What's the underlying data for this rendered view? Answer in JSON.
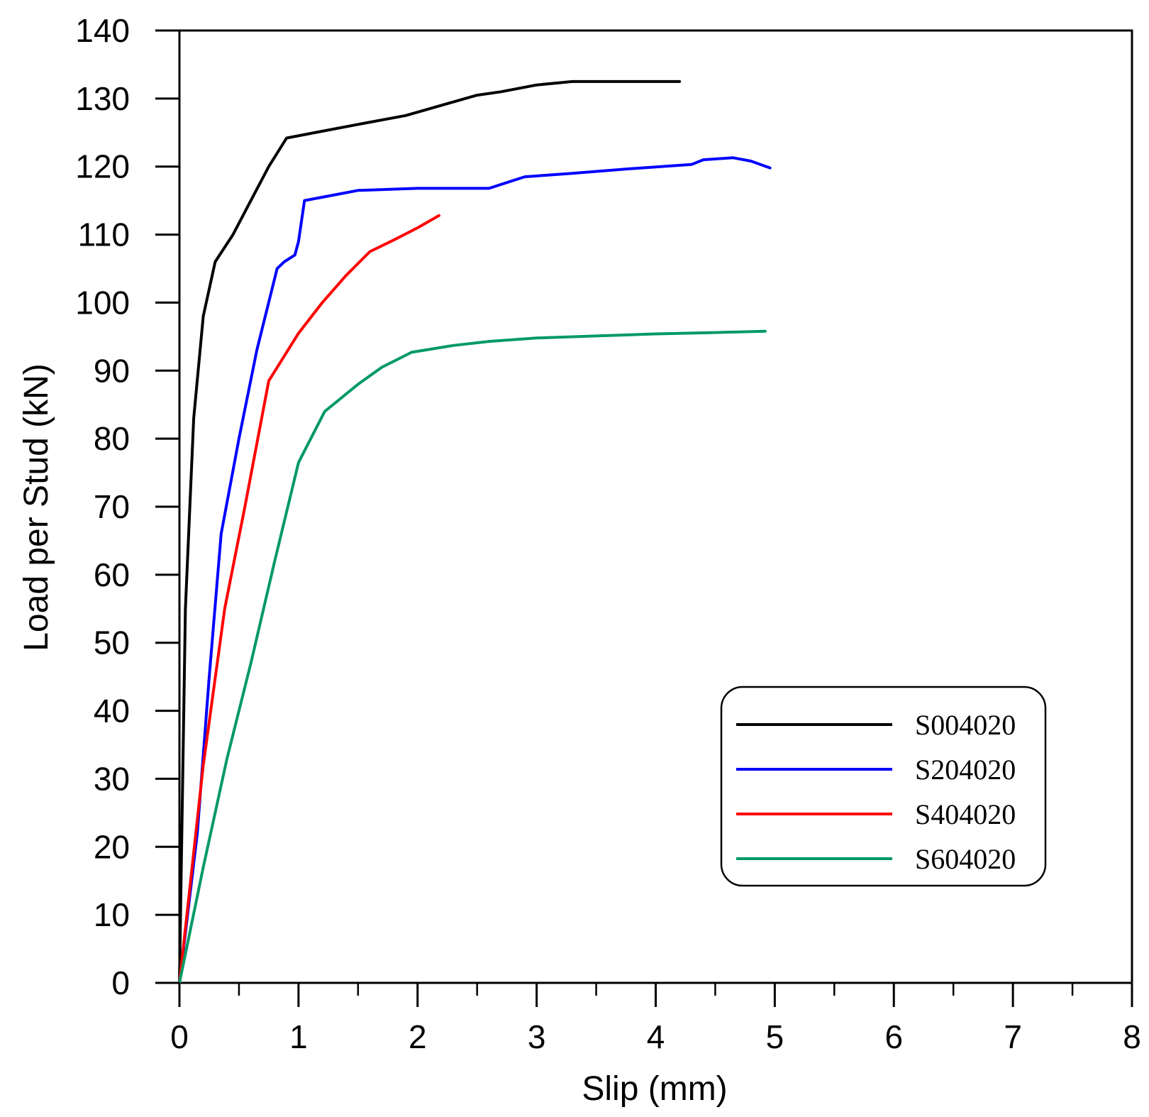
{
  "chart_data": {
    "type": "line",
    "title": "",
    "xlabel": "Slip (mm)",
    "ylabel": "Load per Stud (kN)",
    "xlim": [
      0,
      8
    ],
    "ylim": [
      0,
      140
    ],
    "xticks": [
      "0",
      "1",
      "2",
      "3",
      "4",
      "5",
      "6",
      "7",
      "8"
    ],
    "xtick_values": [
      0,
      1,
      2,
      3,
      4,
      5,
      6,
      7,
      8
    ],
    "yticks": [
      "0",
      "10",
      "20",
      "30",
      "40",
      "50",
      "60",
      "70",
      "80",
      "90",
      "100",
      "110",
      "120",
      "130",
      "140"
    ],
    "ytick_values": [
      0,
      10,
      20,
      30,
      40,
      50,
      60,
      70,
      80,
      90,
      100,
      110,
      120,
      130,
      140
    ],
    "grid": false,
    "legend_position": "bottom-right",
    "series": [
      {
        "name": "S004020",
        "color": "#000000",
        "x": [
          0,
          0.05,
          0.12,
          0.2,
          0.3,
          0.45,
          0.6,
          0.75,
          0.9,
          1.2,
          1.5,
          1.9,
          2.2,
          2.5,
          2.7,
          3.0,
          3.3,
          3.6,
          4.2
        ],
        "y": [
          0,
          55,
          83,
          98,
          106,
          110,
          115,
          120,
          124.2,
          125.2,
          126.2,
          127.5,
          129,
          130.5,
          131,
          132,
          132.5,
          132.5,
          132.5
        ]
      },
      {
        "name": "S204020",
        "color": "#0000ff",
        "x": [
          0,
          0.15,
          0.25,
          0.35,
          0.5,
          0.65,
          0.82,
          0.88,
          0.97,
          1.0,
          1.05,
          1.2,
          1.5,
          2.0,
          2.6,
          2.9,
          3.3,
          3.8,
          4.3,
          4.4,
          4.65,
          4.8,
          4.96
        ],
        "y": [
          0,
          22,
          45,
          66,
          80,
          93,
          105,
          106,
          107,
          109,
          115,
          115.5,
          116.5,
          116.8,
          116.8,
          118.5,
          119,
          119.7,
          120.3,
          121,
          121.3,
          120.8,
          119.8
        ]
      },
      {
        "name": "S404020",
        "color": "#ff0000",
        "x": [
          0,
          0.2,
          0.38,
          0.55,
          0.75,
          1.0,
          1.2,
          1.4,
          1.6,
          1.8,
          2.0,
          2.18
        ],
        "y": [
          0,
          32,
          55,
          70,
          88.5,
          95.5,
          100,
          104,
          107.5,
          109.2,
          111,
          112.8
        ]
      },
      {
        "name": "S604020",
        "color": "#009966",
        "x": [
          0,
          0.2,
          0.4,
          0.6,
          0.8,
          1.0,
          1.22,
          1.5,
          1.7,
          1.95,
          2.3,
          2.6,
          3.0,
          3.5,
          4.0,
          4.5,
          4.92
        ],
        "y": [
          0,
          17,
          33,
          47,
          62,
          76.5,
          84,
          88,
          90.5,
          92.7,
          93.7,
          94.3,
          94.8,
          95.1,
          95.4,
          95.6,
          95.8
        ]
      }
    ]
  }
}
